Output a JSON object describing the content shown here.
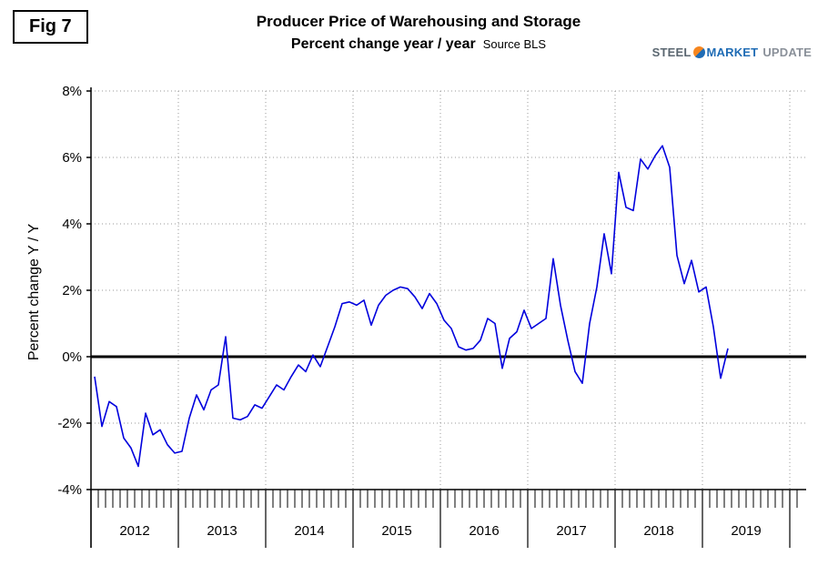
{
  "figure": {
    "label": "Fig 7"
  },
  "header": {
    "title": "Producer Price of Warehousing and Storage",
    "subtitle": "Percent change year / year",
    "source": "Source BLS"
  },
  "logo": {
    "steel": "STEEL",
    "market": "MARKET",
    "update": "UPDATE",
    "orange": "#f6861f",
    "blue": "#1f6cb5",
    "gray": "#5a6670"
  },
  "chart_data": {
    "type": "line",
    "title": "Producer Price of Warehousing and Storage",
    "subtitle": "Percent change year / year",
    "source": "Source BLS",
    "ylabel": "Percent change Y / Y",
    "ylim": [
      -4,
      8
    ],
    "yticks": [
      8,
      6,
      4,
      2,
      0,
      -2,
      -4
    ],
    "ytick_labels": [
      "8%",
      "6%",
      "4%",
      "2%",
      "0%",
      "-2%",
      "-4%"
    ],
    "x_years": [
      "2012",
      "2013",
      "2014",
      "2015",
      "2016",
      "2017",
      "2018",
      "2019"
    ],
    "grid": true,
    "zero_line": true,
    "line_color": "#0000dd",
    "series": [
      {
        "name": "PPI Warehousing and Storage, % change year/year",
        "start_month": "2012-01",
        "freq": "monthly",
        "values": [
          -0.6,
          -2.1,
          -1.35,
          -1.5,
          -2.45,
          -2.75,
          -3.3,
          -1.7,
          -2.35,
          -2.2,
          -2.65,
          -2.9,
          -2.85,
          -1.85,
          -1.15,
          -1.6,
          -1.0,
          -0.85,
          0.6,
          -1.85,
          -1.9,
          -1.8,
          -1.45,
          -1.55,
          -1.2,
          -0.85,
          -1.0,
          -0.6,
          -0.25,
          -0.45,
          0.05,
          -0.3,
          0.3,
          0.9,
          1.6,
          1.65,
          1.55,
          1.7,
          0.95,
          1.55,
          1.85,
          2.0,
          2.1,
          2.05,
          1.8,
          1.45,
          1.9,
          1.6,
          1.1,
          0.85,
          0.3,
          0.2,
          0.25,
          0.5,
          1.15,
          1.0,
          -0.35,
          0.55,
          0.75,
          1.4,
          0.85,
          1.0,
          1.15,
          2.95,
          1.55,
          0.5,
          -0.45,
          -0.8,
          1.0,
          2.1,
          3.7,
          2.5,
          5.55,
          4.5,
          4.4,
          5.95,
          5.65,
          6.05,
          6.35,
          5.7,
          3.05,
          2.2,
          2.9,
          1.95,
          2.1,
          0.9,
          -0.65,
          0.25
        ]
      }
    ]
  }
}
